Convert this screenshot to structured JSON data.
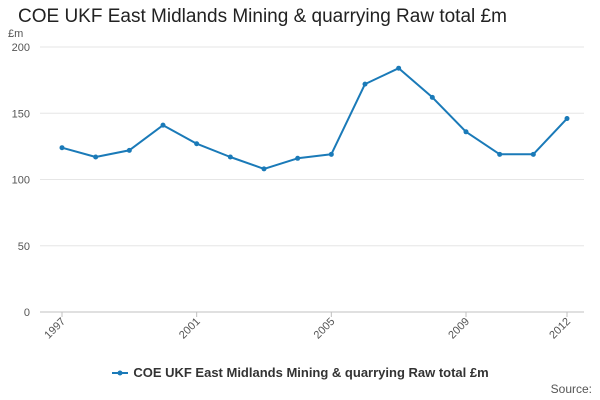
{
  "chart_data": {
    "type": "line",
    "title": "COE UKF East Midlands Mining & quarrying Raw total £m",
    "ylabel": "£m",
    "xlabel": "",
    "x": [
      1997,
      1998,
      1999,
      2000,
      2001,
      2002,
      2003,
      2004,
      2005,
      2006,
      2007,
      2008,
      2009,
      2010,
      2011,
      2012
    ],
    "x_ticks": [
      "1997",
      "2001",
      "2005",
      "2009",
      "2012"
    ],
    "y_ticks": [
      0,
      50,
      100,
      150,
      200
    ],
    "ylim": [
      0,
      200
    ],
    "grid": true,
    "legend_position": "bottom",
    "series": [
      {
        "name": "COE UKF East Midlands Mining & quarrying Raw total £m",
        "color": "#1a7ab8",
        "values": [
          124,
          117,
          122,
          141,
          127,
          117,
          108,
          116,
          119,
          172,
          184,
          162,
          136,
          119,
          119,
          146
        ]
      }
    ]
  },
  "footer": {
    "source_label": "Source:"
  }
}
